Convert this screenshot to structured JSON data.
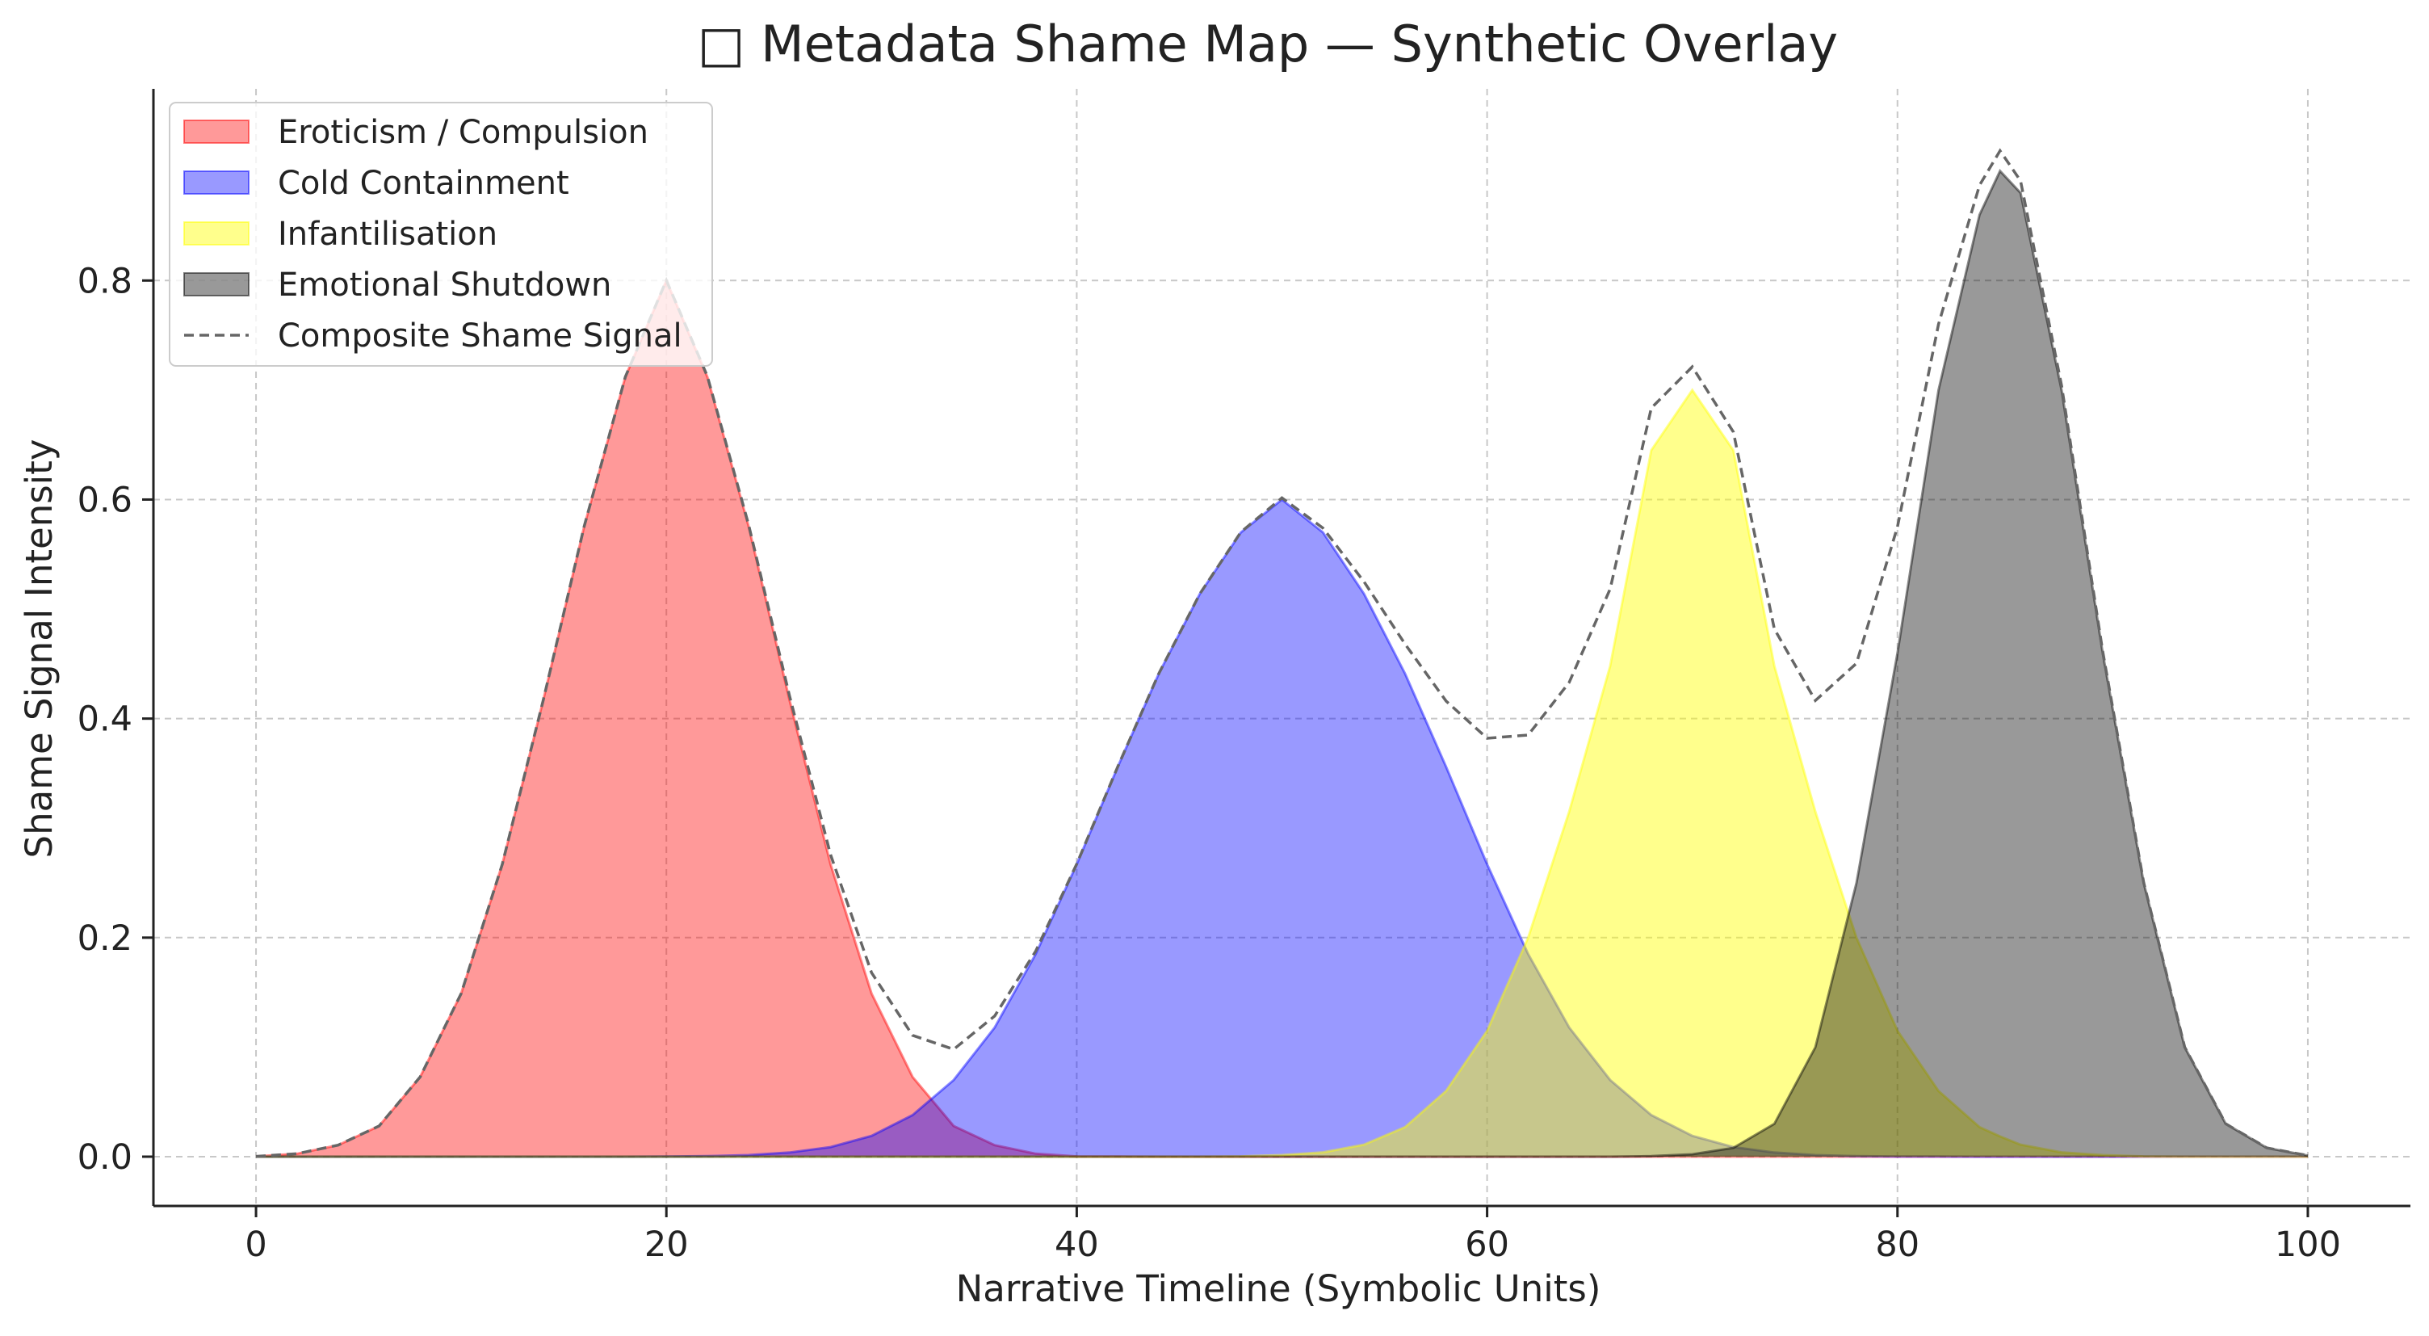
{
  "chart_data": {
    "type": "area",
    "title": "□ Metadata Shame Map — Synthetic Overlay",
    "xlabel": "Narrative Timeline (Symbolic Units)",
    "ylabel": "Shame Signal Intensity",
    "xlim": [
      -5,
      105
    ],
    "ylim": [
      -0.045,
      0.975
    ],
    "x_ticks": [
      0,
      20,
      40,
      60,
      80,
      100
    ],
    "x_tick_labels": [
      "0",
      "20",
      "40",
      "60",
      "80",
      "100"
    ],
    "y_ticks": [
      0.0,
      0.2,
      0.4,
      0.6,
      0.8
    ],
    "y_tick_labels": [
      "0.0",
      "0.2",
      "0.4",
      "0.6",
      "0.8"
    ],
    "grid": true,
    "legend_position": "top-left",
    "x": [
      0,
      2,
      4,
      6,
      8,
      10,
      12,
      14,
      16,
      18,
      20,
      22,
      24,
      26,
      28,
      30,
      32,
      34,
      36,
      38,
      40,
      42,
      44,
      46,
      48,
      50,
      52,
      54,
      56,
      58,
      60,
      62,
      64,
      66,
      68,
      70,
      72,
      74,
      76,
      78,
      80,
      82,
      84,
      85,
      86,
      88,
      90,
      92,
      94,
      96,
      98,
      100
    ],
    "series": [
      {
        "name": "Eroticism / Compulsion",
        "kind": "fill",
        "color": "#ff0000",
        "opacity": 0.4,
        "values": [
          0.0003,
          0.0027,
          0.0105,
          0.028,
          0.0728,
          0.149,
          0.267,
          0.417,
          0.576,
          0.712,
          0.8,
          0.712,
          0.576,
          0.417,
          0.267,
          0.149,
          0.0728,
          0.028,
          0.0105,
          0.0027,
          0.0003,
          0.0001,
          0,
          0,
          0,
          0,
          0,
          0,
          0,
          0,
          0,
          0,
          0,
          0,
          0,
          0,
          0,
          0,
          0,
          0,
          0,
          0,
          0,
          0,
          0,
          0,
          0,
          0,
          0,
          0,
          0,
          0
        ]
      },
      {
        "name": "Cold Containment",
        "kind": "fill",
        "color": "#0000ff",
        "opacity": 0.4,
        "values": [
          0,
          0,
          0,
          0,
          0,
          0,
          0,
          0,
          0,
          0,
          0.0001,
          0.0005,
          0.0015,
          0.0038,
          0.0088,
          0.019,
          0.038,
          0.07,
          0.118,
          0.185,
          0.267,
          0.356,
          0.441,
          0.514,
          0.57,
          0.6,
          0.57,
          0.514,
          0.441,
          0.356,
          0.267,
          0.185,
          0.118,
          0.07,
          0.038,
          0.019,
          0.0088,
          0.0038,
          0.0015,
          0.0005,
          0.0002,
          0.0001,
          0,
          0,
          0,
          0,
          0,
          0,
          0,
          0,
          0,
          0
        ]
      },
      {
        "name": "Infantilisation",
        "kind": "fill",
        "color": "#ffff00",
        "opacity": 0.45,
        "values": [
          0,
          0,
          0,
          0,
          0,
          0,
          0,
          0,
          0,
          0,
          0,
          0,
          0,
          0,
          0,
          0,
          0,
          0,
          0,
          0,
          0,
          0,
          0,
          0,
          0.0003,
          0.0015,
          0.004,
          0.011,
          0.027,
          0.06,
          0.115,
          0.2,
          0.315,
          0.448,
          0.645,
          0.7,
          0.645,
          0.448,
          0.315,
          0.2,
          0.115,
          0.06,
          0.027,
          0.0185,
          0.011,
          0.004,
          0.0015,
          0.0003,
          0,
          0,
          0,
          0
        ]
      },
      {
        "name": "Emotional Shutdown",
        "kind": "fill",
        "color": "#000000",
        "opacity": 0.4,
        "values": [
          0,
          0,
          0,
          0,
          0,
          0,
          0,
          0,
          0,
          0,
          0,
          0,
          0,
          0,
          0,
          0,
          0,
          0,
          0,
          0,
          0,
          0,
          0,
          0,
          0,
          0,
          0,
          0,
          0,
          0,
          0,
          0,
          0,
          0,
          0.0005,
          0.0022,
          0.008,
          0.03,
          0.1,
          0.25,
          0.46,
          0.7,
          0.86,
          0.9,
          0.88,
          0.7,
          0.46,
          0.25,
          0.1,
          0.03,
          0.008,
          0.001
        ]
      },
      {
        "name": "Composite Shame Signal",
        "kind": "line",
        "color": "#666666",
        "dash": true,
        "values": [
          0.0003,
          0.0027,
          0.0105,
          0.028,
          0.0728,
          0.149,
          0.267,
          0.417,
          0.576,
          0.712,
          0.8001,
          0.7125,
          0.5775,
          0.4208,
          0.2758,
          0.168,
          0.1108,
          0.098,
          0.1285,
          0.1877,
          0.2673,
          0.3561,
          0.441,
          0.514,
          0.5703,
          0.6015,
          0.574,
          0.525,
          0.468,
          0.416,
          0.382,
          0.385,
          0.433,
          0.5185,
          0.6835,
          0.7212,
          0.6618,
          0.4818,
          0.4165,
          0.4505,
          0.5752,
          0.7601,
          0.887,
          0.9185,
          0.891,
          0.704,
          0.4615,
          0.2503,
          0.1,
          0.03,
          0.008,
          0.001
        ]
      }
    ]
  }
}
